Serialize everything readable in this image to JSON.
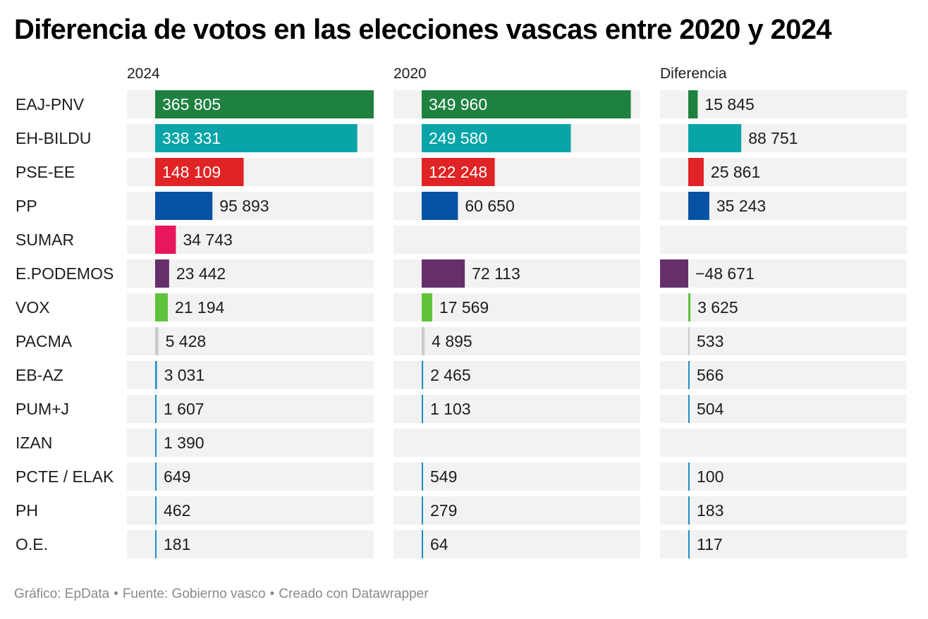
{
  "title": "Diferencia de votos en las elecciones vascas entre 2020 y 2024",
  "footer": {
    "credit": "Gráfico: EpData",
    "source": "Fuente: Gobierno vasco",
    "tool": "Creado con Datawrapper",
    "separator": "•"
  },
  "colors": {
    "row_background": "#f2f2f2",
    "label_text": "#1d1d1d",
    "inside_label_text": "#ffffff",
    "footer_text": "#8a8a8a"
  },
  "chart_data": {
    "type": "bar",
    "orientation": "horizontal",
    "layout": "three panels sharing party rows",
    "categories": [
      "EAJ-PNV",
      "EH-BILDU",
      "PSE-EE",
      "PP",
      "SUMAR",
      "E.PODEMOS",
      "VOX",
      "PACMA",
      "EB-AZ",
      "PUM+J",
      "IZAN",
      "PCTE / ELAK",
      "PH",
      "O.E."
    ],
    "colors": [
      "#1f8140",
      "#08a4a8",
      "#e02324",
      "#0652a4",
      "#e8175d",
      "#652f6b",
      "#5fc23b",
      "#cccccc",
      "#1b8fc2",
      "#1b8fc2",
      "#1b8fc2",
      "#1b8fc2",
      "#1b8fc2",
      "#1b8fc2"
    ],
    "series": [
      {
        "name": "2024",
        "values": [
          365805,
          338331,
          148109,
          95893,
          34743,
          23442,
          21194,
          5428,
          3031,
          1607,
          1390,
          649,
          462,
          181
        ],
        "labels": [
          "365 805",
          "338 331",
          "148 109",
          "95 893",
          "34 743",
          "23 442",
          "21 194",
          "5 428",
          "3 031",
          "1 607",
          "1 390",
          "649",
          "462",
          "181"
        ]
      },
      {
        "name": "2020",
        "values": [
          349960,
          249580,
          122248,
          60650,
          null,
          72113,
          17569,
          4895,
          2465,
          1103,
          null,
          549,
          279,
          64
        ],
        "labels": [
          "349 960",
          "249 580",
          "122 248",
          "60 650",
          "",
          "72 113",
          "17 569",
          "4 895",
          "2 465",
          "1 103",
          "",
          "549",
          "279",
          "64"
        ]
      },
      {
        "name": "Diferencia",
        "values": [
          15845,
          88751,
          25861,
          35243,
          null,
          -48671,
          3625,
          533,
          566,
          504,
          null,
          100,
          183,
          117
        ],
        "labels": [
          "15 845",
          "88 751",
          "25 861",
          "35 243",
          "",
          "−48 671",
          "3 625",
          "533",
          "566",
          "504",
          "",
          "100",
          "183",
          "117"
        ]
      }
    ],
    "xlim": [
      [
        0,
        365805
      ],
      [
        0,
        365805
      ],
      [
        -48671,
        365805
      ]
    ],
    "grid": false,
    "legend": "none"
  }
}
